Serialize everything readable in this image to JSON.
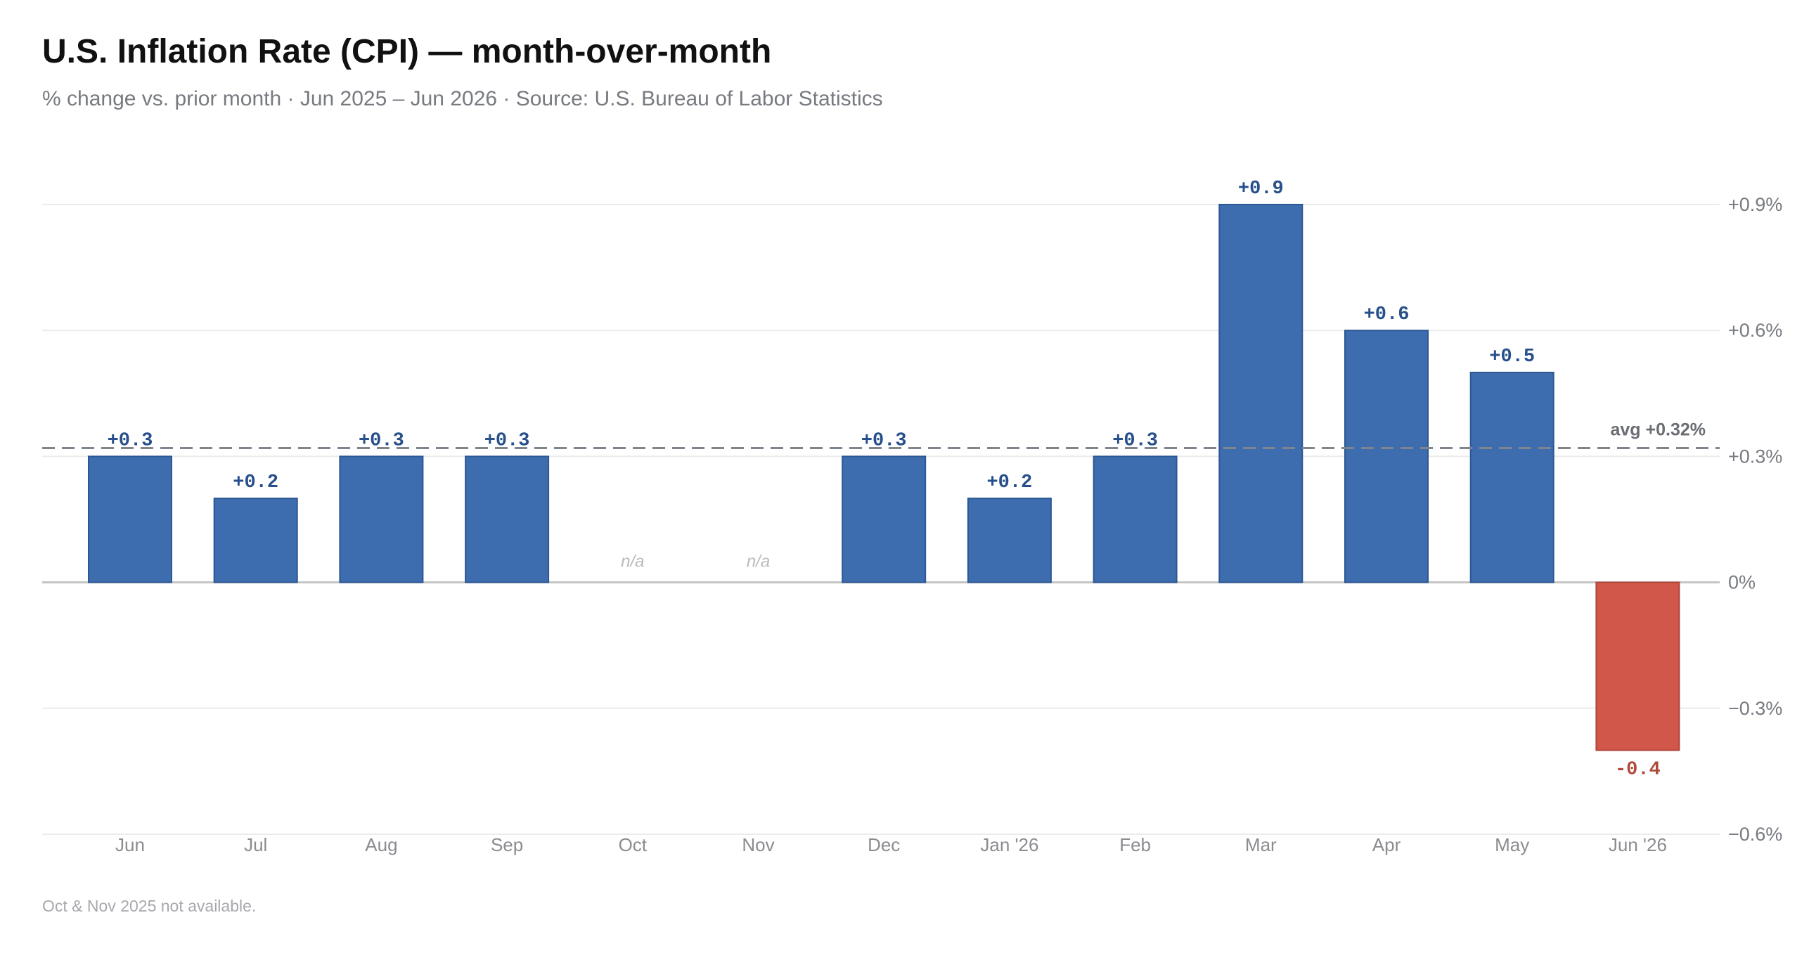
{
  "title": "U.S. Inflation Rate (CPI) — month-over-month",
  "subtitle": "% change vs. prior month · Jun 2025 – Jun 2026 · Source: U.S. Bureau of Labor Statistics",
  "footnote": "Oct & Nov 2025 not available.",
  "colors": {
    "positive": "#3d6daf",
    "positive_label": "#264f8c",
    "negative": "#d0574a",
    "negative_label": "#b04a3a",
    "bar_border_positive": "#2c5793",
    "bar_border_negative": "#b0463b"
  },
  "chart_data": {
    "type": "bar",
    "title": "U.S. Inflation Rate (CPI) — month-over-month",
    "categories": [
      "Jun",
      "Jul",
      "Aug",
      "Sep",
      "Oct",
      "Nov",
      "Dec",
      "Jan '26",
      "Feb",
      "Mar",
      "Apr",
      "May",
      "Jun '26"
    ],
    "values": [
      0.3,
      0.2,
      0.3,
      0.3,
      null,
      null,
      0.3,
      0.2,
      0.3,
      0.9,
      0.6,
      0.5,
      -0.4
    ],
    "value_labels": [
      "+0.3",
      "+0.2",
      "+0.3",
      "+0.3",
      "n/a",
      "n/a",
      "+0.3",
      "+0.2",
      "+0.3",
      "+0.9",
      "+0.6",
      "+0.5",
      "-0.4"
    ],
    "ylim": [
      -0.6,
      0.9
    ],
    "yticks": [
      0.9,
      0.6,
      0.3,
      0,
      -0.3,
      -0.6
    ],
    "ytick_labels": [
      "+0.9%",
      "+0.6%",
      "+0.3%",
      "0%",
      "−0.3%",
      "−0.6%"
    ],
    "y_axis_position": "right",
    "grid": true,
    "average": {
      "value": 0.32,
      "label": "avg +0.32%"
    }
  }
}
